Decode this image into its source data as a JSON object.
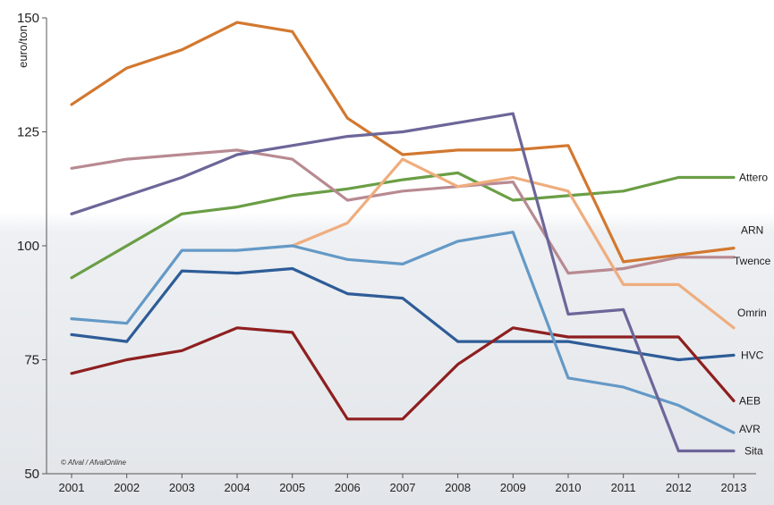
{
  "chart_data": {
    "type": "line",
    "title": "",
    "xlabel": "",
    "ylabel": "euro/ton",
    "credit": "© Afval / AfvalOnline",
    "ylim": [
      50,
      150
    ],
    "yticks": [
      50,
      75,
      100,
      125,
      150
    ],
    "grid": false,
    "legend": "end-of-line labels",
    "x": [
      "2001",
      "2002",
      "2003",
      "2004",
      "2005",
      "2006",
      "2007",
      "2008",
      "2009",
      "2010",
      "2011",
      "2012",
      "2013"
    ],
    "series": [
      {
        "name": "Attero",
        "color": "#6a9e45",
        "values": [
          93,
          100,
          107,
          108.5,
          111,
          112.5,
          114.5,
          116,
          110,
          111,
          112,
          115,
          115
        ]
      },
      {
        "name": "ARN",
        "color": "#d2782f",
        "values": [
          131,
          139,
          143,
          149,
          147,
          128,
          120,
          121,
          121,
          122,
          96.5,
          98,
          99.5
        ]
      },
      {
        "name": "Twence",
        "color": "#b88a92",
        "values": [
          117,
          119,
          120,
          121,
          119,
          110,
          112,
          113,
          114,
          94,
          95,
          97.5,
          97.5
        ]
      },
      {
        "name": "Omrin",
        "color": "#efad7e",
        "values": [
          null,
          null,
          null,
          null,
          100,
          105,
          119,
          113,
          115,
          112,
          91.5,
          91.5,
          82
        ]
      },
      {
        "name": "HVC",
        "color": "#2e5c97",
        "values": [
          80.5,
          79,
          94.5,
          94,
          95,
          89.5,
          88.5,
          79,
          79,
          79,
          77,
          75,
          76
        ]
      },
      {
        "name": "AEB",
        "color": "#8e1f1f",
        "values": [
          72,
          75,
          77,
          82,
          81,
          62,
          62,
          74,
          82,
          80,
          80,
          80,
          66
        ]
      },
      {
        "name": "AVR",
        "color": "#6499c6",
        "values": [
          84,
          83,
          99,
          99,
          100,
          97,
          96,
          101,
          103,
          71,
          69,
          65,
          59
        ]
      },
      {
        "name": "Sita",
        "color": "#6c6699",
        "values": [
          107,
          111,
          115,
          120,
          122,
          124,
          125,
          127,
          129,
          85,
          86,
          55,
          55
        ]
      }
    ]
  }
}
